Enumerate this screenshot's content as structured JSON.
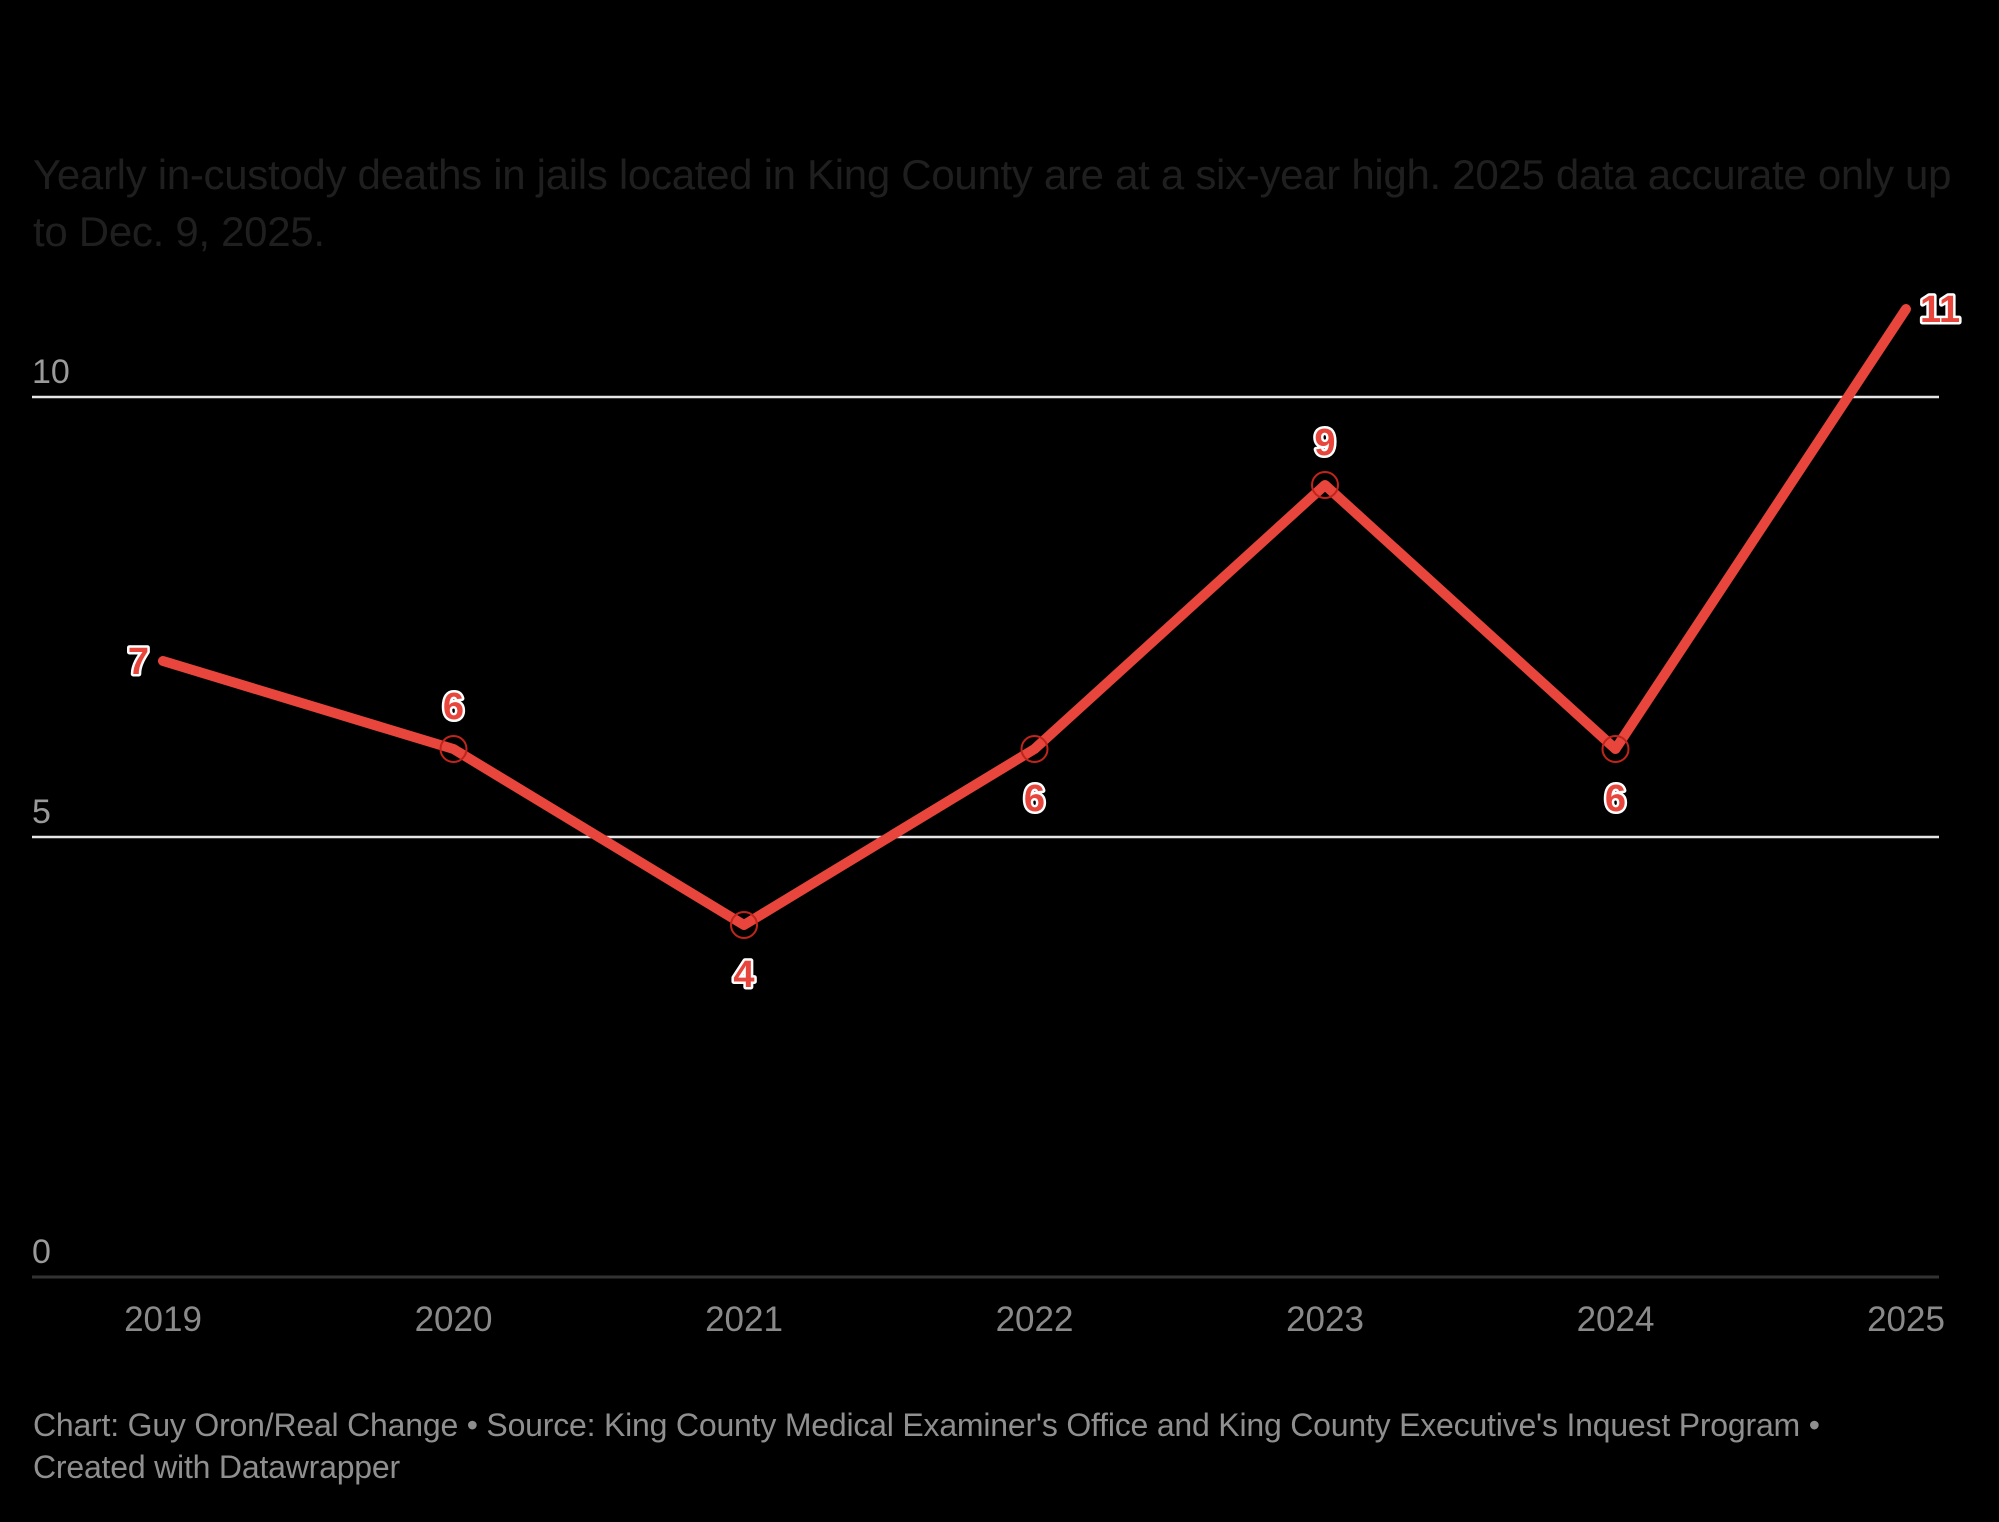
{
  "title": "Yearly in-custody deaths in jails located in King County are at a six-year high. 2025 data accurate only up to Dec. 9, 2025.",
  "footer": "Chart: Guy Oron/Real Change • Source: King County Medical Examiner's Office and King County Executive's Inquest Program • Created with Datawrapper",
  "colors": {
    "background": "#000000",
    "line": "#e8453c",
    "marker_outline": "#c0251c",
    "gridline": "#e6e6e6",
    "baseline": "#333333"
  },
  "chart_data": {
    "type": "line",
    "title": "Yearly in-custody deaths in jails located in King County are at a six-year high. 2025 data accurate only up to Dec. 9, 2025.",
    "xlabel": "",
    "ylabel": "",
    "categories": [
      "2019",
      "2020",
      "2021",
      "2022",
      "2023",
      "2024",
      "2025"
    ],
    "series": [
      {
        "name": "In-custody deaths",
        "values": [
          7,
          6,
          4,
          6,
          9,
          6,
          11
        ]
      }
    ],
    "ylim": [
      0,
      11
    ],
    "yticks": [
      0,
      5,
      10
    ],
    "grid": true,
    "legend": "none",
    "data_label_positions": [
      "left",
      "above",
      "below",
      "below",
      "above",
      "below",
      "right"
    ]
  }
}
